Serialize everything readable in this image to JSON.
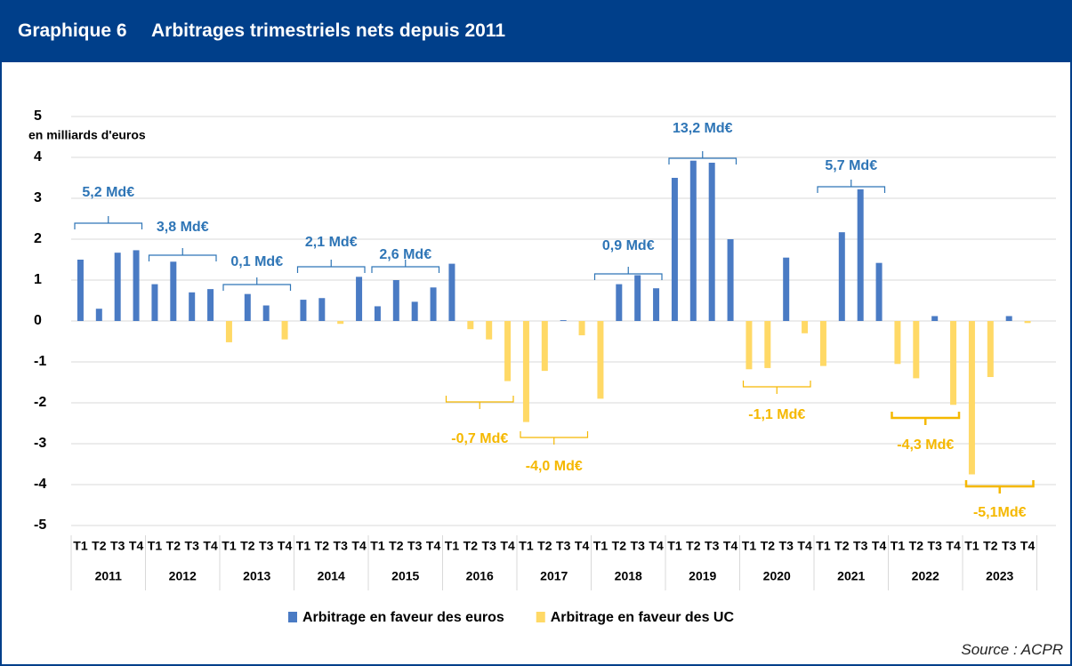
{
  "header": {
    "number": "Graphique 6",
    "title": "Arbitrages trimestriels nets depuis 2011"
  },
  "chart_data": {
    "type": "bar",
    "y_axis_label": "en milliards d'euros",
    "categories": [
      "T1",
      "T2",
      "T3",
      "T4",
      "T1",
      "T2",
      "T3",
      "T4",
      "T1",
      "T2",
      "T3",
      "T4",
      "T1",
      "T2",
      "T3",
      "T4",
      "T1",
      "T2",
      "T3",
      "T4",
      "T1",
      "T2",
      "T3",
      "T4",
      "T1",
      "T2",
      "T3",
      "T4",
      "T1",
      "T2",
      "T3",
      "T4",
      "T1",
      "T2",
      "T3",
      "T4",
      "T1",
      "T2",
      "T3",
      "T4",
      "T1",
      "T2",
      "T3",
      "T4",
      "T1",
      "T2",
      "T3",
      "T4",
      "T1",
      "T2",
      "T3",
      "T4"
    ],
    "years": [
      "2011",
      "2012",
      "2013",
      "2014",
      "2015",
      "2016",
      "2017",
      "2018",
      "2019",
      "2020",
      "2021",
      "2022",
      "2023"
    ],
    "series": [
      {
        "name": "Arbitrage en faveur des euros",
        "color": "#4a7bc4",
        "values": [
          1.5,
          0.3,
          1.67,
          1.73,
          0.9,
          1.45,
          0.7,
          0.78,
          null,
          0.66,
          0.38,
          null,
          0.52,
          0.56,
          null,
          1.08,
          0.36,
          1.0,
          0.47,
          0.82,
          1.4,
          null,
          null,
          null,
          null,
          null,
          0.02,
          null,
          null,
          0.9,
          1.12,
          0.8,
          3.5,
          3.92,
          3.87,
          2.0,
          null,
          null,
          1.55,
          null,
          null,
          2.17,
          3.22,
          1.42,
          null,
          null,
          0.12,
          null,
          null,
          null,
          0.12,
          null
        ]
      },
      {
        "name": "Arbitrage en faveur des UC",
        "color": "#ffd966",
        "values": [
          null,
          null,
          null,
          null,
          null,
          null,
          null,
          null,
          -0.52,
          null,
          null,
          -0.45,
          null,
          null,
          -0.07,
          null,
          null,
          null,
          null,
          null,
          null,
          -0.2,
          -0.45,
          -1.47,
          -2.47,
          -1.22,
          null,
          -0.35,
          -1.9,
          null,
          null,
          null,
          null,
          null,
          null,
          null,
          -1.18,
          -1.15,
          null,
          -0.3,
          -1.1,
          null,
          null,
          null,
          -1.05,
          -1.4,
          null,
          -2.05,
          -3.75,
          -1.37,
          null,
          -0.05
        ]
      }
    ],
    "annotations": [
      "5,2 Md€",
      "3,8 Md€",
      "0,1 Md€",
      "2,1 Md€",
      "2,6 Md€",
      "-0,7 Md€",
      "-4,0 Md€",
      "0,9 Md€",
      "13,2 Md€",
      "-1,1 Md€",
      "5,7 Md€",
      "-4,3 Md€",
      "-5,1Md€"
    ],
    "ylim": [
      -5,
      5
    ],
    "yticks": [
      -5,
      -4,
      -3,
      -2,
      -1,
      0,
      1,
      2,
      3,
      4,
      5
    ],
    "grid": true
  },
  "source": "Source : ACPR"
}
